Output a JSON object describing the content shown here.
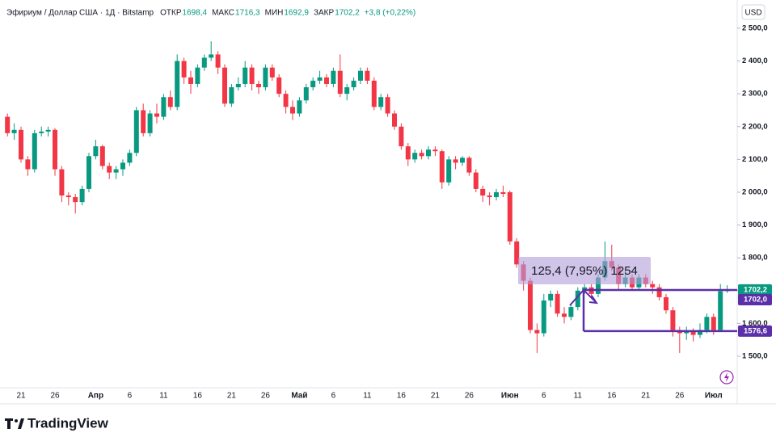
{
  "chart_data": {
    "type": "candlestick",
    "title": "Эфириум / Доллар США · 1Д · Bitstamp",
    "ohlc": [
      {
        "name": "ОТКР",
        "value": "1698,4"
      },
      {
        "name": "МАКС",
        "value": "1716,3"
      },
      {
        "name": "МИН",
        "value": "1692,9"
      },
      {
        "name": "ЗАКР",
        "value": "1702,2"
      }
    ],
    "change": "+3,8 (+0,22%)",
    "currency": "USD",
    "brand": "TradingView",
    "measure_label": "125,4 (7,95%) 1254",
    "up_color": "#089981",
    "down_color": "#f23645",
    "categories": [
      null,
      null,
      "21",
      null,
      null,
      null,
      null,
      "26",
      null,
      null,
      null,
      null,
      null,
      "Апр",
      null,
      null,
      null,
      null,
      "6",
      null,
      null,
      null,
      null,
      "11",
      null,
      null,
      null,
      null,
      "16",
      null,
      null,
      null,
      null,
      "21",
      null,
      null,
      null,
      null,
      "26",
      null,
      null,
      null,
      null,
      "Май",
      null,
      null,
      null,
      null,
      "6",
      null,
      null,
      null,
      null,
      "11",
      null,
      null,
      null,
      null,
      "16",
      null,
      null,
      null,
      null,
      "21",
      null,
      null,
      null,
      null,
      "26",
      null,
      null,
      null,
      null,
      null,
      "Июн",
      null,
      null,
      null,
      null,
      "6",
      null,
      null,
      null,
      null,
      "11",
      null,
      null,
      null,
      null,
      "16",
      null,
      null,
      null,
      null,
      "21",
      null,
      null,
      null,
      null,
      "26",
      null,
      null,
      null,
      null,
      "Июл",
      null,
      null
    ],
    "open": [
      2230,
      2180,
      2190,
      2100,
      2070,
      2180,
      2185,
      2190,
      2070,
      1990,
      1985,
      1970,
      2010,
      2110,
      2140,
      2080,
      2060,
      2070,
      2090,
      2120,
      2250,
      2180,
      2240,
      2230,
      2290,
      2260,
      2400,
      2350,
      2330,
      2380,
      2410,
      2420,
      2380,
      2270,
      2320,
      2330,
      2380,
      2330,
      2320,
      2380,
      2350,
      2300,
      2260,
      2240,
      2280,
      2320,
      2340,
      2350,
      2330,
      2370,
      2300,
      2320,
      2340,
      2370,
      2340,
      2260,
      2290,
      2240,
      2200,
      2140,
      2100,
      2120,
      2110,
      2130,
      2125,
      2030,
      2100,
      2090,
      2105,
      2060,
      2010,
      1990,
      1985,
      2000,
      2000,
      1850,
      1780,
      1730,
      1580,
      1570,
      1670,
      1690,
      1630,
      1620,
      1650,
      1700,
      1710,
      1690,
      1740,
      1790,
      1770,
      1720,
      1740,
      1710,
      1740,
      1720,
      1710,
      1680,
      1640,
      1580,
      1570,
      1575,
      1565,
      1580,
      1620,
      1580,
      1698.4
    ],
    "high": [
      2240,
      2210,
      2200,
      2110,
      2190,
      2200,
      2200,
      2195,
      2080,
      2000,
      1995,
      2020,
      2120,
      2160,
      2145,
      2090,
      2080,
      2100,
      2130,
      2260,
      2270,
      2250,
      2270,
      2300,
      2310,
      2420,
      2410,
      2370,
      2390,
      2420,
      2460,
      2430,
      2390,
      2330,
      2350,
      2400,
      2390,
      2340,
      2390,
      2390,
      2360,
      2310,
      2280,
      2290,
      2330,
      2350,
      2370,
      2360,
      2380,
      2420,
      2330,
      2350,
      2380,
      2380,
      2350,
      2300,
      2300,
      2250,
      2210,
      2150,
      2130,
      2130,
      2140,
      2140,
      2130,
      2110,
      2110,
      2110,
      2110,
      2070,
      2020,
      2000,
      2010,
      2020,
      2005,
      1860,
      1790,
      1740,
      1600,
      1690,
      1700,
      1700,
      1650,
      1660,
      1710,
      1720,
      1720,
      1750,
      1850,
      1840,
      1780,
      1760,
      1750,
      1750,
      1750,
      1730,
      1720,
      1690,
      1650,
      1590,
      1590,
      1585,
      1600,
      1630,
      1630,
      1720,
      1716.3
    ],
    "low": [
      2170,
      2160,
      2090,
      2050,
      2060,
      2170,
      2170,
      2050,
      1970,
      1960,
      1935,
      1960,
      2000,
      2100,
      2070,
      2040,
      2040,
      2050,
      2080,
      2110,
      2170,
      2170,
      2210,
      2220,
      2250,
      2250,
      2330,
      2300,
      2320,
      2370,
      2400,
      2360,
      2260,
      2260,
      2310,
      2320,
      2310,
      2300,
      2310,
      2340,
      2290,
      2240,
      2220,
      2230,
      2270,
      2310,
      2330,
      2320,
      2320,
      2290,
      2280,
      2310,
      2330,
      2330,
      2250,
      2250,
      2230,
      2190,
      2130,
      2080,
      2090,
      2100,
      2100,
      2110,
      2010,
      2020,
      2070,
      2080,
      2050,
      2000,
      1970,
      1960,
      1975,
      1985,
      1840,
      1770,
      1700,
      1570,
      1510,
      1560,
      1650,
      1620,
      1600,
      1610,
      1640,
      1690,
      1680,
      1680,
      1730,
      1760,
      1700,
      1710,
      1700,
      1700,
      1710,
      1690,
      1670,
      1630,
      1560,
      1510,
      1550,
      1545,
      1555,
      1570,
      1565,
      1575,
      1692.9
    ],
    "close": [
      2180,
      2190,
      2100,
      2070,
      2180,
      2185,
      2190,
      2070,
      1990,
      1985,
      1970,
      2010,
      2110,
      2140,
      2080,
      2060,
      2070,
      2090,
      2120,
      2250,
      2180,
      2240,
      2230,
      2290,
      2260,
      2400,
      2350,
      2330,
      2380,
      2410,
      2420,
      2380,
      2270,
      2320,
      2330,
      2380,
      2330,
      2320,
      2380,
      2350,
      2300,
      2260,
      2240,
      2280,
      2320,
      2340,
      2350,
      2330,
      2370,
      2300,
      2320,
      2340,
      2370,
      2340,
      2260,
      2290,
      2240,
      2200,
      2140,
      2100,
      2120,
      2110,
      2130,
      2125,
      2030,
      2100,
      2090,
      2105,
      2060,
      2010,
      1990,
      1985,
      2000,
      1995,
      1850,
      1780,
      1730,
      1580,
      1570,
      1670,
      1690,
      1630,
      1620,
      1650,
      1700,
      1710,
      1690,
      1740,
      1790,
      1770,
      1720,
      1740,
      1710,
      1740,
      1720,
      1710,
      1680,
      1640,
      1580,
      1570,
      1575,
      1565,
      1580,
      1620,
      1580,
      1698.4,
      1702.2
    ],
    "ylim": [
      1404,
      2586
    ],
    "yticks": [
      {
        "value": 1500,
        "label": "1 500,0"
      },
      {
        "value": 1600,
        "label": "1 600,0"
      },
      {
        "value": 1700,
        "label": "1 700,0"
      },
      {
        "value": 1800,
        "label": "1 800,0"
      },
      {
        "value": 1900,
        "label": "1 900,0"
      },
      {
        "value": 2000,
        "label": "2 000,0"
      },
      {
        "value": 2100,
        "label": "2 100,0"
      },
      {
        "value": 2200,
        "label": "2 200,0"
      },
      {
        "value": 2300,
        "label": "2 300,0"
      },
      {
        "value": 2400,
        "label": "2 400,0"
      },
      {
        "value": 2500,
        "label": "2 500,0"
      }
    ],
    "price_tags": [
      {
        "value": 1702.2,
        "label": "1702,2",
        "color": "#089981"
      },
      {
        "value": 1702.0,
        "label": "1702,0",
        "color": "#5b2fa8"
      },
      {
        "value": 1576.6,
        "label": "1576,6",
        "color": "#5b2fa8"
      }
    ],
    "range_box": {
      "top": 1702.0,
      "bottom": 1576.6,
      "color": "#5b2fa8"
    }
  }
}
